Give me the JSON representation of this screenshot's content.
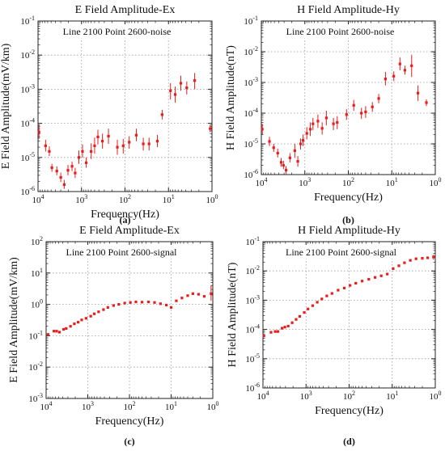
{
  "chart_data": [
    {
      "type": "scatter",
      "panel_label": "(a)",
      "title": "E Field Amplitude-Ex",
      "annotation": "Line 2100 Point 2600-noise",
      "xlabel": "Frequency(Hz)",
      "ylabel": "E Field Amplitude(mV/km)",
      "x_scale": "log",
      "y_scale": "log",
      "x_reversed": true,
      "xlim": [
        10000,
        1
      ],
      "ylim": [
        1e-06,
        0.1
      ],
      "grid": true,
      "x_ticks": [
        {
          "base": "10",
          "exp": "4",
          "value": 10000
        },
        {
          "base": "10",
          "exp": "3",
          "value": 1000
        },
        {
          "base": "10",
          "exp": "2",
          "value": 100
        },
        {
          "base": "10",
          "exp": "1",
          "value": 10
        },
        {
          "base": "10",
          "exp": "0",
          "value": 1
        }
      ],
      "y_ticks": [
        {
          "base": "10",
          "exp": "-6",
          "value": 1e-06
        },
        {
          "base": "10",
          "exp": "-5",
          "value": 1e-05
        },
        {
          "base": "10",
          "exp": "-4",
          "value": 0.0001
        },
        {
          "base": "10",
          "exp": "-3",
          "value": 0.001
        },
        {
          "base": "10",
          "exp": "-2",
          "value": 0.01
        },
        {
          "base": "10",
          "exp": "-1",
          "value": 0.1
        }
      ],
      "marker_color": "#e81c1c",
      "points": [
        {
          "x": 9500,
          "y": 5.5e-05,
          "lo": 3.5e-05,
          "hi": 9e-05
        },
        {
          "x": 6700,
          "y": 2.2e-05,
          "lo": 1.5e-05,
          "hi": 3.3e-05
        },
        {
          "x": 5500,
          "y": 1.5e-05,
          "lo": 1.1e-05,
          "hi": 2.1e-05
        },
        {
          "x": 4800,
          "y": 5e-06,
          "lo": 3.8e-06,
          "hi": 6.5e-06
        },
        {
          "x": 3700,
          "y": 4e-06,
          "lo": 3e-06,
          "hi": 5.5e-06
        },
        {
          "x": 3000,
          "y": 2.6e-06,
          "lo": 1.9e-06,
          "hi": 3.6e-06
        },
        {
          "x": 2500,
          "y": 1.6e-06,
          "lo": 1.2e-06,
          "hi": 2.2e-06
        },
        {
          "x": 2050,
          "y": 4.2e-06,
          "lo": 3e-06,
          "hi": 6e-06
        },
        {
          "x": 1650,
          "y": 5.5e-06,
          "lo": 4e-06,
          "hi": 7.5e-06
        },
        {
          "x": 1400,
          "y": 3.5e-06,
          "lo": 2.5e-06,
          "hi": 5e-06
        },
        {
          "x": 1150,
          "y": 1e-05,
          "lo": 6.5e-06,
          "hi": 1.6e-05
        },
        {
          "x": 950,
          "y": 1.5e-05,
          "lo": 1e-05,
          "hi": 2.4e-05
        },
        {
          "x": 780,
          "y": 7e-06,
          "lo": 5e-06,
          "hi": 1e-05
        },
        {
          "x": 600,
          "y": 1.5e-05,
          "lo": 9e-06,
          "hi": 2.6e-05
        },
        {
          "x": 500,
          "y": 2.2e-05,
          "lo": 1.3e-05,
          "hi": 3.8e-05
        },
        {
          "x": 420,
          "y": 4e-05,
          "lo": 2.4e-05,
          "hi": 6.5e-05
        },
        {
          "x": 330,
          "y": 3e-05,
          "lo": 1.8e-05,
          "hi": 5e-05
        },
        {
          "x": 240,
          "y": 4.2e-05,
          "lo": 2.5e-05,
          "hi": 7e-05
        },
        {
          "x": 150,
          "y": 2e-05,
          "lo": 1.2e-05,
          "hi": 3.3e-05
        },
        {
          "x": 110,
          "y": 2.2e-05,
          "lo": 1.3e-05,
          "hi": 3.5e-05
        },
        {
          "x": 80,
          "y": 2.8e-05,
          "lo": 1.8e-05,
          "hi": 4.2e-05
        },
        {
          "x": 55,
          "y": 4.5e-05,
          "lo": 3e-05,
          "hi": 7e-05
        },
        {
          "x": 38,
          "y": 2.5e-05,
          "lo": 1.6e-05,
          "hi": 3.8e-05
        },
        {
          "x": 28,
          "y": 2.5e-05,
          "lo": 1.6e-05,
          "hi": 3.8e-05
        },
        {
          "x": 18,
          "y": 3e-05,
          "lo": 2e-05,
          "hi": 4.6e-05
        },
        {
          "x": 14,
          "y": 0.00018,
          "lo": 0.00013,
          "hi": 0.00025
        },
        {
          "x": 9,
          "y": 0.0009,
          "lo": 0.0005,
          "hi": 0.0015
        },
        {
          "x": 7,
          "y": 0.0007,
          "lo": 0.0004,
          "hi": 0.0012
        },
        {
          "x": 5.2,
          "y": 0.0015,
          "lo": 0.0009,
          "hi": 0.0025
        },
        {
          "x": 3.8,
          "y": 0.0011,
          "lo": 0.0007,
          "hi": 0.0017
        },
        {
          "x": 2.5,
          "y": 0.0018,
          "lo": 0.001,
          "hi": 0.003
        },
        {
          "x": 1.1,
          "y": 7e-05,
          "lo": 5.5e-05,
          "hi": 9e-05
        }
      ]
    },
    {
      "type": "scatter",
      "panel_label": "(b)",
      "title": "H Field Amplitude-Hy",
      "annotation": "Line 2100 Point 2600-noise",
      "xlabel": "Frequency(Hz)",
      "ylabel": "H Field Amplitude(nT)",
      "x_scale": "log",
      "y_scale": "log",
      "x_reversed": true,
      "xlim": [
        10000,
        1
      ],
      "ylim": [
        1e-06,
        0.1
      ],
      "grid": true,
      "x_ticks": [
        {
          "base": "10",
          "exp": "4",
          "value": 10000
        },
        {
          "base": "10",
          "exp": "3",
          "value": 1000
        },
        {
          "base": "10",
          "exp": "2",
          "value": 100
        },
        {
          "base": "10",
          "exp": "1",
          "value": 10
        },
        {
          "base": "10",
          "exp": "0",
          "value": 1
        }
      ],
      "y_ticks": [
        {
          "base": "10",
          "exp": "-6",
          "value": 1e-06
        },
        {
          "base": "10",
          "exp": "-5",
          "value": 1e-05
        },
        {
          "base": "10",
          "exp": "-4",
          "value": 0.0001
        },
        {
          "base": "10",
          "exp": "-3",
          "value": 0.001
        },
        {
          "base": "10",
          "exp": "-2",
          "value": 0.01
        },
        {
          "base": "10",
          "exp": "-1",
          "value": 0.1
        }
      ],
      "marker_color": "#e81c1c",
      "points": [
        {
          "x": 9500,
          "y": 3e-05,
          "lo": 2e-05,
          "hi": 4.5e-05
        },
        {
          "x": 6500,
          "y": 1.2e-05,
          "lo": 8.5e-06,
          "hi": 1.7e-05
        },
        {
          "x": 5200,
          "y": 7.5e-06,
          "lo": 5.5e-06,
          "hi": 1e-05
        },
        {
          "x": 4200,
          "y": 5e-06,
          "lo": 3.6e-06,
          "hi": 7e-06
        },
        {
          "x": 3500,
          "y": 2.5e-06,
          "lo": 1.8e-06,
          "hi": 3.5e-06
        },
        {
          "x": 3100,
          "y": 2e-06,
          "lo": 1.5e-06,
          "hi": 2.8e-06
        },
        {
          "x": 2700,
          "y": 1.4e-06,
          "lo": 1.05e-06,
          "hi": 1.9e-06
        },
        {
          "x": 2200,
          "y": 3.5e-06,
          "lo": 2.5e-06,
          "hi": 5e-06
        },
        {
          "x": 1700,
          "y": 6e-06,
          "lo": 3.5e-06,
          "hi": 1e-05
        },
        {
          "x": 1450,
          "y": 2.7e-06,
          "lo": 1.8e-06,
          "hi": 4e-06
        },
        {
          "x": 1250,
          "y": 1e-05,
          "lo": 6.5e-06,
          "hi": 1.5e-05
        },
        {
          "x": 1100,
          "y": 1.3e-05,
          "lo": 8.5e-06,
          "hi": 2e-05
        },
        {
          "x": 900,
          "y": 2.2e-05,
          "lo": 1.4e-05,
          "hi": 3.5e-05
        },
        {
          "x": 750,
          "y": 3e-05,
          "lo": 1.8e-05,
          "hi": 5e-05
        },
        {
          "x": 650,
          "y": 4.5e-05,
          "lo": 2.8e-05,
          "hi": 7e-05
        },
        {
          "x": 500,
          "y": 5.5e-05,
          "lo": 3.3e-05,
          "hi": 9e-05
        },
        {
          "x": 400,
          "y": 3.2e-05,
          "lo": 2e-05,
          "hi": 5e-05
        },
        {
          "x": 320,
          "y": 7e-05,
          "lo": 4e-05,
          "hi": 0.00012
        },
        {
          "x": 220,
          "y": 4.5e-05,
          "lo": 2.8e-05,
          "hi": 7e-05
        },
        {
          "x": 180,
          "y": 5e-05,
          "lo": 3e-05,
          "hi": 8e-05
        },
        {
          "x": 110,
          "y": 9e-05,
          "lo": 6e-05,
          "hi": 0.000135
        },
        {
          "x": 75,
          "y": 0.00018,
          "lo": 0.00012,
          "hi": 0.00027
        },
        {
          "x": 50,
          "y": 0.0001,
          "lo": 6.5e-05,
          "hi": 0.00015
        },
        {
          "x": 40,
          "y": 0.00011,
          "lo": 7e-05,
          "hi": 0.00017
        },
        {
          "x": 28,
          "y": 0.00016,
          "lo": 0.00011,
          "hi": 0.00023
        },
        {
          "x": 20,
          "y": 0.0003,
          "lo": 0.00021,
          "hi": 0.00042
        },
        {
          "x": 14,
          "y": 0.0013,
          "lo": 0.0008,
          "hi": 0.0022
        },
        {
          "x": 9,
          "y": 0.0016,
          "lo": 0.0011,
          "hi": 0.0023
        },
        {
          "x": 6.5,
          "y": 0.004,
          "lo": 0.0025,
          "hi": 0.0065
        },
        {
          "x": 5,
          "y": 0.0025,
          "lo": 0.0018,
          "hi": 0.0035
        },
        {
          "x": 3.5,
          "y": 0.0035,
          "lo": 0.0015,
          "hi": 0.008
        },
        {
          "x": 2.5,
          "y": 0.00045,
          "lo": 0.00025,
          "hi": 0.0008
        },
        {
          "x": 1.6,
          "y": 0.00022,
          "lo": 0.00017,
          "hi": 0.00028
        }
      ]
    },
    {
      "type": "scatter",
      "panel_label": "(c)",
      "title": "E Field Amplitude-Ex",
      "annotation": "Line 2100 Point 2600-signal",
      "xlabel": "Frequency(Hz)",
      "ylabel": "E Field Amplitude(mV/km)",
      "x_scale": "log",
      "y_scale": "log",
      "x_reversed": true,
      "xlim": [
        10000,
        1
      ],
      "ylim": [
        0.001,
        100
      ],
      "grid": true,
      "x_ticks": [
        {
          "base": "10",
          "exp": "4",
          "value": 10000
        },
        {
          "base": "10",
          "exp": "3",
          "value": 1000
        },
        {
          "base": "10",
          "exp": "2",
          "value": 100
        },
        {
          "base": "10",
          "exp": "1",
          "value": 10
        },
        {
          "base": "10",
          "exp": "0",
          "value": 1
        }
      ],
      "y_ticks": [
        {
          "base": "10",
          "exp": "-3",
          "value": 0.001
        },
        {
          "base": "10",
          "exp": "-2",
          "value": 0.01
        },
        {
          "base": "10",
          "exp": "-1",
          "value": 0.1
        },
        {
          "base": "10",
          "exp": "0",
          "value": 1
        },
        {
          "base": "10",
          "exp": "1",
          "value": 10
        },
        {
          "base": "10",
          "exp": "2",
          "value": 100
        }
      ],
      "marker_color": "#e81c1c",
      "points": [
        {
          "x": 9000,
          "y": 0.11
        },
        {
          "x": 6500,
          "y": 0.14
        },
        {
          "x": 5600,
          "y": 0.14
        },
        {
          "x": 4800,
          "y": 0.13
        },
        {
          "x": 3800,
          "y": 0.16
        },
        {
          "x": 3300,
          "y": 0.17
        },
        {
          "x": 2600,
          "y": 0.2
        },
        {
          "x": 2100,
          "y": 0.24
        },
        {
          "x": 1700,
          "y": 0.27
        },
        {
          "x": 1400,
          "y": 0.32
        },
        {
          "x": 1100,
          "y": 0.36
        },
        {
          "x": 850,
          "y": 0.42
        },
        {
          "x": 700,
          "y": 0.5
        },
        {
          "x": 550,
          "y": 0.58
        },
        {
          "x": 420,
          "y": 0.68
        },
        {
          "x": 330,
          "y": 0.8
        },
        {
          "x": 240,
          "y": 0.92
        },
        {
          "x": 180,
          "y": 1
        },
        {
          "x": 130,
          "y": 1.1
        },
        {
          "x": 95,
          "y": 1.15
        },
        {
          "x": 70,
          "y": 1.2
        },
        {
          "x": 50,
          "y": 1.18
        },
        {
          "x": 35,
          "y": 1.2
        },
        {
          "x": 25,
          "y": 1.15
        },
        {
          "x": 18,
          "y": 1.05
        },
        {
          "x": 13,
          "y": 0.95
        },
        {
          "x": 10,
          "y": 0.8
        },
        {
          "x": 7.5,
          "y": 1.3
        },
        {
          "x": 5.5,
          "y": 1.6
        },
        {
          "x": 4,
          "y": 1.9
        },
        {
          "x": 3,
          "y": 2.2
        },
        {
          "x": 2.2,
          "y": 2.1
        },
        {
          "x": 1.6,
          "y": 1.8
        },
        {
          "x": 1.1,
          "y": 2.2,
          "lo": 1.3,
          "hi": 4
        }
      ]
    },
    {
      "type": "scatter",
      "panel_label": "(d)",
      "title": "H Field Amplitude-Hy",
      "annotation": "Line 2100 Point 2600-signal",
      "xlabel": "Frequency(Hz)",
      "ylabel": "H Field Amplitude(nT)",
      "x_scale": "log",
      "y_scale": "log",
      "x_reversed": true,
      "xlim": [
        10000,
        1
      ],
      "ylim": [
        1e-06,
        0.1
      ],
      "grid": true,
      "x_ticks": [
        {
          "base": "10",
          "exp": "4",
          "value": 10000
        },
        {
          "base": "10",
          "exp": "3",
          "value": 1000
        },
        {
          "base": "10",
          "exp": "2",
          "value": 100
        },
        {
          "base": "10",
          "exp": "1",
          "value": 10
        },
        {
          "base": "10",
          "exp": "0",
          "value": 1
        }
      ],
      "y_ticks": [
        {
          "base": "10",
          "exp": "-6",
          "value": 1e-06
        },
        {
          "base": "10",
          "exp": "-5",
          "value": 1e-05
        },
        {
          "base": "10",
          "exp": "-4",
          "value": 0.0001
        },
        {
          "base": "10",
          "exp": "-3",
          "value": 0.001
        },
        {
          "base": "10",
          "exp": "-2",
          "value": 0.01
        },
        {
          "base": "10",
          "exp": "-1",
          "value": 0.1
        }
      ],
      "marker_color": "#e81c1c",
      "points": [
        {
          "x": 9500,
          "y": 6e-05
        },
        {
          "x": 6500,
          "y": 8e-05
        },
        {
          "x": 5200,
          "y": 8.5e-05
        },
        {
          "x": 4500,
          "y": 8.5e-05
        },
        {
          "x": 3600,
          "y": 0.00011
        },
        {
          "x": 3100,
          "y": 0.00012
        },
        {
          "x": 2600,
          "y": 0.00013
        },
        {
          "x": 2100,
          "y": 0.00017
        },
        {
          "x": 1700,
          "y": 0.00022
        },
        {
          "x": 1400,
          "y": 0.00028
        },
        {
          "x": 1100,
          "y": 0.00038
        },
        {
          "x": 900,
          "y": 0.0005
        },
        {
          "x": 700,
          "y": 0.00065
        },
        {
          "x": 550,
          "y": 0.00085
        },
        {
          "x": 430,
          "y": 0.0011
        },
        {
          "x": 330,
          "y": 0.0014
        },
        {
          "x": 250,
          "y": 0.0017
        },
        {
          "x": 180,
          "y": 0.0022
        },
        {
          "x": 130,
          "y": 0.0026
        },
        {
          "x": 95,
          "y": 0.0032
        },
        {
          "x": 70,
          "y": 0.0038
        },
        {
          "x": 50,
          "y": 0.0045
        },
        {
          "x": 35,
          "y": 0.0052
        },
        {
          "x": 25,
          "y": 0.006
        },
        {
          "x": 18,
          "y": 0.0068
        },
        {
          "x": 13,
          "y": 0.0078
        },
        {
          "x": 9.5,
          "y": 0.012
        },
        {
          "x": 7,
          "y": 0.015
        },
        {
          "x": 5.2,
          "y": 0.019
        },
        {
          "x": 3.8,
          "y": 0.023
        },
        {
          "x": 2.8,
          "y": 0.026
        },
        {
          "x": 2,
          "y": 0.027
        },
        {
          "x": 1.5,
          "y": 0.028
        },
        {
          "x": 1.1,
          "y": 0.03,
          "lo": 0.024,
          "hi": 0.036
        }
      ]
    }
  ]
}
